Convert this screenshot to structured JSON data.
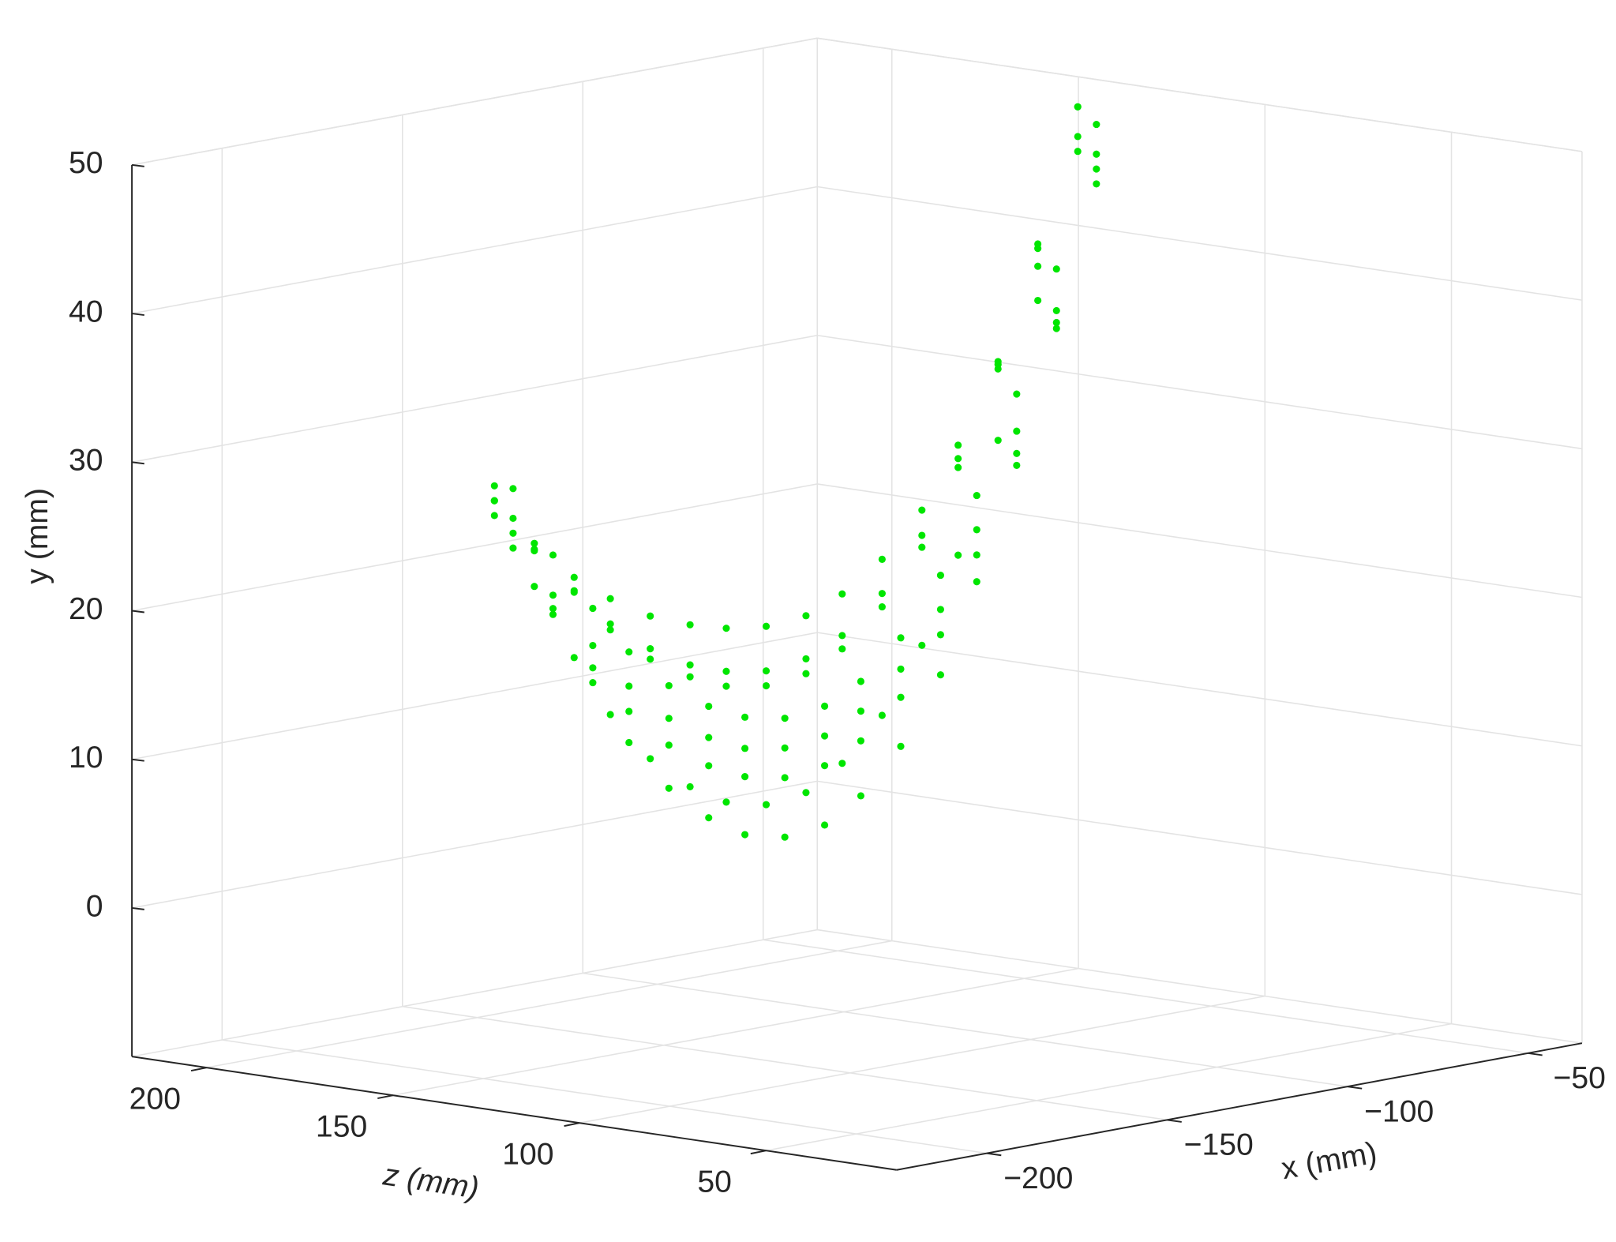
{
  "chart_data": {
    "type": "scatter3d",
    "xlabel": "x (mm)",
    "ylabel": "y (mm)",
    "zlabel": "z (mm)",
    "color": "#00e600",
    "grid": true,
    "xlim": [
      -225,
      -35
    ],
    "ylim": [
      -10,
      50
    ],
    "zlim": [
      15,
      220
    ],
    "xticks": [
      {
        "value": -200,
        "label": "−200"
      },
      {
        "value": -150,
        "label": "−150"
      },
      {
        "value": -100,
        "label": "−100"
      },
      {
        "value": -50,
        "label": "−50"
      }
    ],
    "yticks": [
      0,
      10,
      20,
      30,
      40,
      50
    ],
    "zticks": [
      50,
      100,
      150,
      200
    ],
    "x": [
      -200,
      -191,
      -181,
      -172,
      -163,
      -153,
      -144,
      -135,
      -125,
      -116,
      -107,
      -97,
      -88,
      -79,
      -69,
      -60,
      -200,
      -191,
      -181,
      -172,
      -163,
      -153,
      -144,
      -135,
      -125,
      -116,
      -107,
      -97,
      -88,
      -79,
      -69,
      -60,
      -200,
      -191,
      -181,
      -172,
      -163,
      -153,
      -144,
      -135,
      -125,
      -116,
      -107,
      -97,
      -88,
      -79,
      -69,
      -60,
      -200,
      -191,
      -181,
      -172,
      -163,
      -153,
      -144,
      -135,
      -125,
      -116,
      -107,
      -97,
      -88,
      -79,
      -69,
      -60,
      -200,
      -191,
      -181,
      -172,
      -163,
      -153,
      -144,
      -135,
      -125,
      -116,
      -107,
      -97,
      -88,
      -79,
      -69,
      -60,
      -200,
      -191,
      -181,
      -172,
      -163,
      -153,
      -144,
      -135,
      -125,
      -116,
      -107,
      -97,
      -88,
      -79,
      -69,
      -60,
      -200,
      -191,
      -181,
      -172,
      -163,
      -153,
      -144,
      -135,
      -125,
      -116,
      -107,
      -97,
      -88,
      -79,
      -69,
      -60,
      -200,
      -191,
      -181,
      -172,
      -163,
      -153,
      -144,
      -135,
      -125,
      -116,
      -107,
      -97,
      -88,
      -79,
      -69,
      -60
    ],
    "z": [
      142,
      140,
      139,
      138,
      136,
      135,
      134,
      132,
      131,
      130,
      128,
      127,
      126,
      124,
      123,
      121,
      147,
      145,
      144,
      143,
      141,
      140,
      139,
      137,
      136,
      135,
      133,
      132,
      131,
      129,
      128,
      126,
      142,
      140,
      139,
      138,
      136,
      135,
      134,
      132,
      131,
      130,
      128,
      127,
      126,
      124,
      123,
      121,
      147,
      145,
      144,
      143,
      141,
      140,
      139,
      137,
      136,
      135,
      133,
      132,
      131,
      129,
      128,
      126,
      142,
      140,
      139,
      138,
      136,
      135,
      134,
      132,
      131,
      130,
      128,
      127,
      126,
      124,
      123,
      121,
      147,
      145,
      144,
      143,
      141,
      140,
      139,
      137,
      136,
      135,
      133,
      132,
      131,
      129,
      128,
      126,
      142,
      140,
      139,
      138,
      136,
      135,
      134,
      132,
      131,
      130,
      128,
      127,
      126,
      124,
      123,
      121,
      147,
      145,
      144,
      143,
      141,
      140,
      139,
      137,
      136,
      135,
      133,
      132,
      131,
      129,
      128,
      126
    ],
    "y": [
      30,
      25.2,
      21.2,
      17.9,
      15.3,
      13.5,
      12.4,
      12,
      12.4,
      13.7,
      16.3,
      20.1,
      25.1,
      31.6,
      39.6,
      49,
      29,
      22.9,
      17.7,
      13.5,
      10.2,
      7.9,
      6.5,
      6,
      6.4,
      8,
      10.9,
      15.2,
      20.9,
      28.3,
      37.3,
      48,
      28,
      21.6,
      16.2,
      11.8,
      8.4,
      6,
      4.5,
      4,
      4.4,
      6,
      9,
      13.4,
      19.3,
      26.8,
      36,
      47,
      29,
      25.3,
      22.1,
      19.6,
      17.6,
      16.1,
      15.3,
      15,
      15.4,
      16.6,
      19.1,
      22.6,
      27.4,
      33.6,
      41.1,
      50,
      27,
      22.5,
      18.7,
      15.6,
      13.1,
      11.4,
      10.3,
      10,
      10.4,
      11.7,
      14.2,
      17.8,
      22.8,
      29.1,
      36.8,
      46,
      28,
      25.4,
      23.1,
      21.3,
      19.8,
      18.8,
      18.2,
      18,
      18.3,
      19.4,
      21.4,
      24.3,
      28.3,
      33.4,
      39.6,
      47,
      26,
      21.2,
      17.2,
      13.9,
      11.3,
      9.5,
      8.4,
      8,
      8.4,
      9.7,
      12.3,
      16.1,
      21.1,
      27.6,
      35.6,
      45,
      30,
      25.8,
      22.2,
      19.2,
      16.9,
      15.3,
      14.3,
      14,
      14.4,
      15.7,
      18.2,
      21.8,
      26.8,
      33.1,
      40.8,
      50
    ]
  }
}
